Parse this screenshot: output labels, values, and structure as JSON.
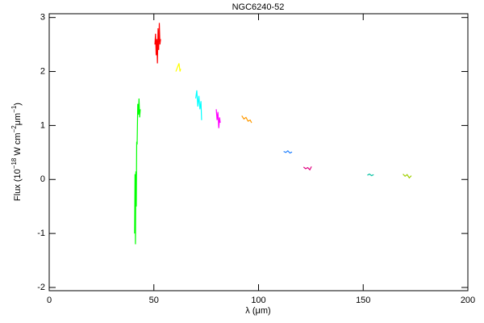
{
  "chart_data": {
    "type": "line",
    "title": "NGC6240-52",
    "xlabel": "λ (μm)",
    "ylabel_parts": [
      "Flux (10",
      "−18",
      " W cm",
      "−2",
      "μm",
      "−1",
      ")"
    ],
    "xlim": [
      0,
      200
    ],
    "xticks": [
      0,
      50,
      100,
      150,
      200
    ],
    "ylim": [
      -2.06,
      3.07
    ],
    "yticks": [
      -2,
      -1,
      0,
      1,
      2,
      3
    ],
    "grid": false,
    "series": [
      {
        "color": "#00ff00",
        "x": [
          40.8,
          41.0,
          41.2,
          41.4,
          41.6,
          41.8,
          42.0,
          42.3,
          42.6,
          42.9,
          43.2,
          43.5
        ],
        "values": [
          -1.0,
          0.1,
          -1.2,
          0.15,
          -0.5,
          0.7,
          0.65,
          1.4,
          1.2,
          1.5,
          1.15,
          1.3
        ]
      },
      {
        "color": "#ff0000",
        "x": [
          50.5,
          50.8,
          51.1,
          51.4,
          51.7,
          52.0,
          52.3,
          52.6,
          52.9,
          53.2
        ],
        "values": [
          2.5,
          2.7,
          2.3,
          2.6,
          2.15,
          2.8,
          2.4,
          2.9,
          2.5,
          2.6
        ]
      },
      {
        "color": "#ffff00",
        "x": [
          60.5,
          61.0,
          61.5,
          62.0,
          62.5,
          62.8
        ],
        "values": [
          2.0,
          2.05,
          2.1,
          2.15,
          2.0,
          2.05
        ]
      },
      {
        "color": "#00ffff",
        "x": [
          70.0,
          70.5,
          71.0,
          71.5,
          72.0,
          72.5,
          72.8
        ],
        "values": [
          1.5,
          1.65,
          1.35,
          1.55,
          1.3,
          1.45,
          1.1
        ]
      },
      {
        "color": "#ff00ff",
        "x": [
          79.8,
          80.2,
          80.6,
          81.0,
          81.4,
          81.7
        ],
        "values": [
          1.3,
          1.1,
          1.25,
          0.95,
          1.15,
          1.05
        ]
      },
      {
        "color": "#ff9900",
        "x": [
          92,
          93,
          94,
          95,
          96,
          96.7
        ],
        "values": [
          1.18,
          1.12,
          1.15,
          1.08,
          1.1,
          1.05
        ]
      },
      {
        "color": "#1e7fff",
        "x": [
          112,
          113,
          114,
          115,
          116
        ],
        "values": [
          0.52,
          0.5,
          0.53,
          0.49,
          0.51
        ]
      },
      {
        "color": "#e0007f",
        "x": [
          121.5,
          122.5,
          123.5,
          124.5,
          125.3
        ],
        "values": [
          0.23,
          0.2,
          0.22,
          0.18,
          0.24
        ]
      },
      {
        "color": "#00c0a0",
        "x": [
          152,
          153,
          154,
          155
        ],
        "values": [
          0.08,
          0.1,
          0.07,
          0.09
        ]
      },
      {
        "color": "#a0d000",
        "x": [
          169,
          170,
          171,
          172,
          173
        ],
        "values": [
          0.1,
          0.06,
          0.09,
          0.03,
          0.07
        ]
      }
    ]
  }
}
